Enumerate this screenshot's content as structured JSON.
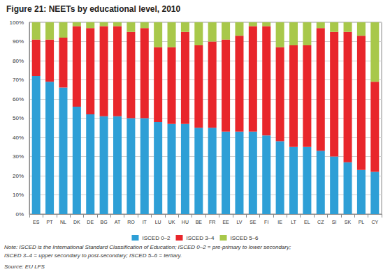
{
  "chart_data": {
    "type": "bar",
    "title": "Figure 21: NEETs by educational level, 2010",
    "annotations": [
      "Note: ISCED is the International Standard Classification of Education; ISCED 0–2 = pre-primary to lower secondary;",
      "ISCED 3–4 = upper secondary to post-secondary; ISCED 5–6 = tertiary.",
      "Source: EU LFS"
    ],
    "categories": [
      "ES",
      "PT",
      "NL",
      "DK",
      "DE",
      "BG",
      "AT",
      "RO",
      "IT",
      "LU",
      "UK",
      "HU",
      "BE",
      "FR",
      "EE",
      "LV",
      "SE",
      "FI",
      "IE",
      "LT",
      "EL",
      "CZ",
      "SI",
      "SK",
      "PL",
      "CY"
    ],
    "series": [
      {
        "name": "ISCED 0–2",
        "color": "#2e9fd6",
        "values": [
          72,
          69,
          66,
          56,
          52,
          51,
          51,
          50,
          50,
          48,
          47,
          47,
          45,
          45,
          43,
          43,
          43,
          41,
          38,
          35,
          35,
          33,
          30,
          27,
          23,
          22
        ]
      },
      {
        "name": "ISCED 3–4",
        "color": "#e8262b",
        "values": [
          19,
          22,
          26,
          42,
          45,
          47,
          47,
          45,
          47,
          39,
          40,
          48,
          43,
          45,
          48,
          50,
          55,
          57,
          49,
          53,
          53,
          64,
          65,
          68,
          70,
          47
        ]
      },
      {
        "name": "ISCED 5–6",
        "color": "#a8c84a",
        "values": [
          9,
          9,
          8,
          2,
          3,
          2,
          2,
          5,
          3,
          13,
          13,
          5,
          12,
          10,
          9,
          7,
          2,
          2,
          13,
          12,
          12,
          3,
          5,
          5,
          7,
          31
        ]
      }
    ],
    "stacked": true,
    "ylim": [
      0,
      100
    ],
    "yticks": [
      {
        "value": 0,
        "label": "0%"
      },
      {
        "value": 10,
        "label": "10%"
      },
      {
        "value": 20,
        "label": "20%"
      },
      {
        "value": 30,
        "label": "30%"
      },
      {
        "value": 40,
        "label": "40%"
      },
      {
        "value": 50,
        "label": "50%"
      },
      {
        "value": 60,
        "label": "60%"
      },
      {
        "value": 70,
        "label": "70%"
      },
      {
        "value": 80,
        "label": "80%"
      },
      {
        "value": 90,
        "label": "90%"
      },
      {
        "value": 100,
        "label": "100%"
      }
    ],
    "grid": true,
    "legend": "bottom"
  }
}
